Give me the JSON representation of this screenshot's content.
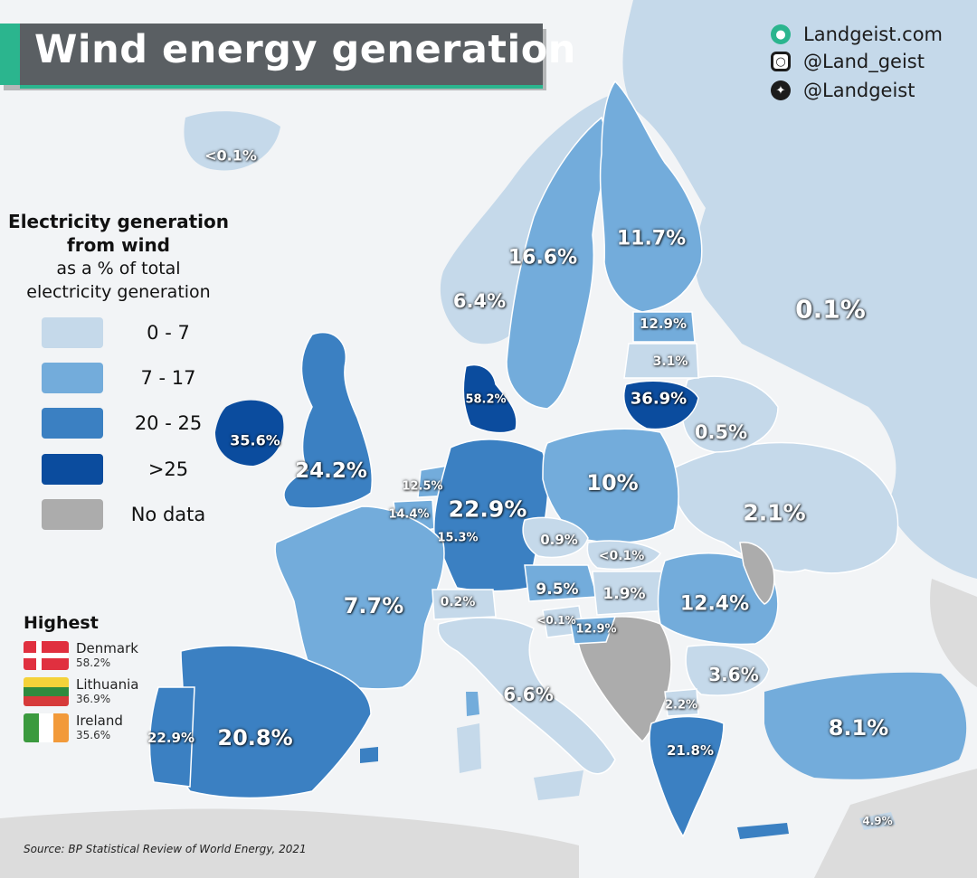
{
  "title": "Wind energy generation",
  "social": [
    {
      "icon": "globe-icon",
      "text": "Landgeist.com"
    },
    {
      "icon": "instagram-icon",
      "text": "@Land_geist"
    },
    {
      "icon": "twitter-icon",
      "text": "@Landgeist"
    }
  ],
  "legend": {
    "title_line1": "Electricity generation",
    "title_line2": "from wind",
    "subtitle_line1": "as a % of total",
    "subtitle_line2": "electricity generation",
    "items": [
      {
        "label": "0  -  7",
        "color": "#c5d9ea"
      },
      {
        "label": "7  -  17",
        "color": "#73acdb"
      },
      {
        "label": "20 - 25",
        "color": "#3b80c2"
      },
      {
        "label": ">25",
        "color": "#0b4c9e"
      },
      {
        "label": "No data",
        "color": "#acacac"
      }
    ]
  },
  "highest": {
    "title": "Highest",
    "items": [
      {
        "country": "Denmark",
        "value": "58.2%"
      },
      {
        "country": "Lithuania",
        "value": "36.9%"
      },
      {
        "country": "Ireland",
        "value": "35.6%"
      }
    ]
  },
  "source": "Source: BP Statistical Review of World Energy, 2021",
  "labels": [
    {
      "text": "<0.1%",
      "class": "light"
    },
    {
      "text": "16.6%",
      "class": "mid"
    },
    {
      "text": "11.7%",
      "class": "mid"
    },
    {
      "text": "6.4%",
      "class": "light"
    },
    {
      "text": "0.1%",
      "class": "light"
    },
    {
      "text": "12.9%",
      "class": "mid"
    },
    {
      "text": "3.1%",
      "class": "light"
    },
    {
      "text": "36.9%",
      "class": "dark"
    },
    {
      "text": "58.2%",
      "class": "dark"
    },
    {
      "text": "35.6%",
      "class": "dark"
    },
    {
      "text": "24.2%",
      "class": "strong"
    },
    {
      "text": "0.5%",
      "class": "light"
    },
    {
      "text": "10%",
      "class": "mid"
    },
    {
      "text": "12.5%",
      "class": "mid"
    },
    {
      "text": "14.4%",
      "class": "mid"
    },
    {
      "text": "22.9%",
      "class": "strong"
    },
    {
      "text": "15.3%",
      "class": "mid"
    },
    {
      "text": "2.1%",
      "class": "light"
    },
    {
      "text": "0.9%",
      "class": "light"
    },
    {
      "text": "<0.1%",
      "class": "light"
    },
    {
      "text": "9.5%",
      "class": "mid"
    },
    {
      "text": "1.9%",
      "class": "light"
    },
    {
      "text": "12.4%",
      "class": "mid"
    },
    {
      "text": "7.7%",
      "class": "mid"
    },
    {
      "text": "0.2%",
      "class": "light"
    },
    {
      "text": "<0.1%",
      "class": "light"
    },
    {
      "text": "12.9%",
      "class": "mid"
    },
    {
      "text": "3.6%",
      "class": "light"
    },
    {
      "text": "6.6%",
      "class": "light"
    },
    {
      "text": "2.2%",
      "class": "light"
    },
    {
      "text": "8.1%",
      "class": "mid"
    },
    {
      "text": "22.9%",
      "class": "strong"
    },
    {
      "text": "20.8%",
      "class": "strong"
    },
    {
      "text": "21.8%",
      "class": "strong"
    },
    {
      "text": "4.9%",
      "class": "light"
    }
  ]
}
